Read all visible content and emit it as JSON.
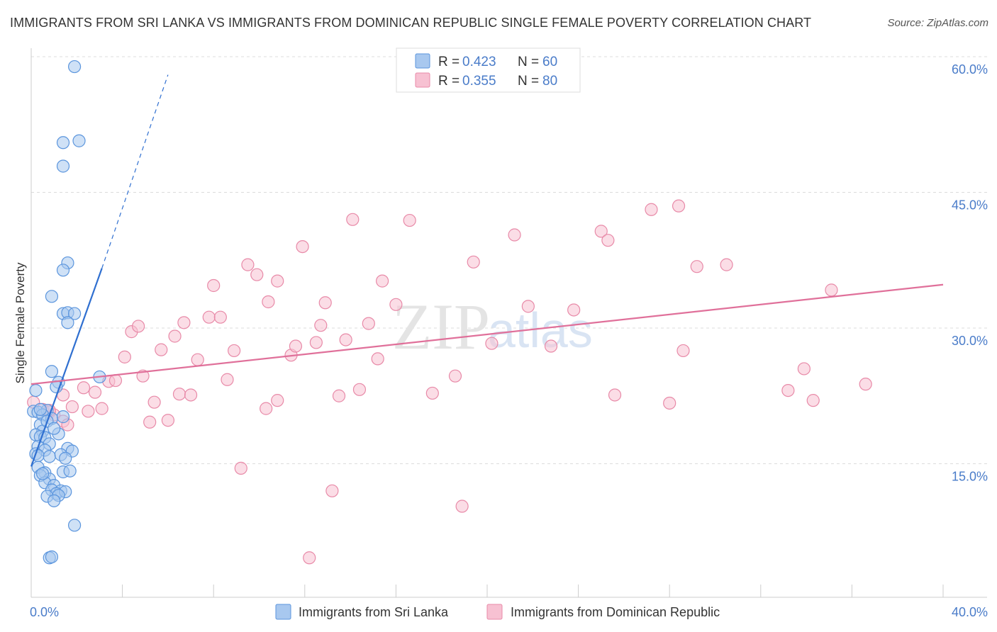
{
  "header": {
    "title": "IMMIGRANTS FROM SRI LANKA VS IMMIGRANTS FROM DOMINICAN REPUBLIC SINGLE FEMALE POVERTY CORRELATION CHART",
    "source": "Source: ZipAtlas.com"
  },
  "watermark": {
    "zip": "ZIP",
    "atlas": "atlas"
  },
  "legend": {
    "r_label": "R = ",
    "n_label": "N = ",
    "rows": [
      {
        "r": "0.423",
        "n": "60"
      },
      {
        "r": "0.355",
        "n": "80"
      }
    ]
  },
  "colors": {
    "blue_fill": "#a8c8ef",
    "blue_stroke": "#5b95dd",
    "blue_line": "#2f6fd0",
    "pink_fill": "#f7c1d2",
    "pink_stroke": "#e88aa8",
    "pink_line": "#e0709a",
    "text_blue": "#4a7cc9"
  },
  "chart_data": {
    "type": "scatter",
    "title": "IMMIGRANTS FROM SRI LANKA VS IMMIGRANTS FROM DOMINICAN REPUBLIC SINGLE FEMALE POVERTY CORRELATION CHART",
    "xlabel": "",
    "ylabel": "Single Female Poverty",
    "xlim": [
      0,
      40
    ],
    "ylim": [
      0,
      60
    ],
    "x_tick_labels": [
      "0.0%",
      "40.0%"
    ],
    "y_tick_labels": [
      "15.0%",
      "30.0%",
      "45.0%",
      "60.0%"
    ],
    "y_ticks": [
      15,
      30,
      45,
      60
    ],
    "x_minor_ticks": [
      0,
      4,
      8,
      12,
      16,
      20,
      24,
      28,
      32,
      36,
      40
    ],
    "grid": true,
    "legend_position": "top-center",
    "series": [
      {
        "name": "Immigrants from Sri Lanka",
        "color": "blue",
        "r": 0.423,
        "n": 60,
        "trend": {
          "x0": 0,
          "y0": 14.7,
          "x1": 3.1,
          "y1": 36.6,
          "dash_to_x": 6.0,
          "dash_to_y": 58.0
        },
        "points": [
          [
            1.9,
            58.9
          ],
          [
            1.4,
            50.5
          ],
          [
            2.1,
            50.7
          ],
          [
            1.4,
            47.9
          ],
          [
            1.6,
            37.2
          ],
          [
            1.4,
            36.4
          ],
          [
            0.9,
            33.5
          ],
          [
            1.4,
            31.6
          ],
          [
            1.6,
            31.7
          ],
          [
            1.9,
            31.6
          ],
          [
            1.6,
            30.6
          ],
          [
            0.9,
            25.2
          ],
          [
            1.2,
            24.0
          ],
          [
            1.1,
            23.5
          ],
          [
            3.0,
            24.6
          ],
          [
            0.2,
            23.1
          ],
          [
            0.1,
            20.8
          ],
          [
            0.3,
            20.7
          ],
          [
            0.7,
            20.9
          ],
          [
            0.5,
            20.4
          ],
          [
            0.9,
            20.0
          ],
          [
            1.4,
            20.2
          ],
          [
            0.4,
            19.3
          ],
          [
            0.5,
            18.6
          ],
          [
            0.2,
            18.2
          ],
          [
            0.4,
            18.0
          ],
          [
            0.6,
            17.9
          ],
          [
            1.2,
            18.3
          ],
          [
            0.8,
            17.2
          ],
          [
            0.3,
            16.9
          ],
          [
            0.6,
            16.5
          ],
          [
            1.6,
            16.7
          ],
          [
            1.8,
            16.4
          ],
          [
            0.2,
            16.1
          ],
          [
            0.3,
            15.9
          ],
          [
            0.8,
            15.8
          ],
          [
            1.3,
            16.0
          ],
          [
            1.5,
            15.6
          ],
          [
            0.3,
            14.6
          ],
          [
            0.6,
            14.0
          ],
          [
            1.4,
            14.1
          ],
          [
            1.7,
            14.2
          ],
          [
            0.4,
            13.7
          ],
          [
            0.8,
            13.3
          ],
          [
            0.6,
            12.9
          ],
          [
            1.0,
            12.6
          ],
          [
            0.9,
            12.1
          ],
          [
            1.3,
            12.0
          ],
          [
            1.1,
            11.7
          ],
          [
            1.5,
            11.9
          ],
          [
            0.7,
            11.4
          ],
          [
            1.2,
            11.5
          ],
          [
            1.0,
            10.9
          ],
          [
            1.9,
            8.2
          ],
          [
            0.8,
            4.6
          ],
          [
            0.9,
            4.7
          ],
          [
            0.4,
            21.0
          ],
          [
            0.7,
            19.7
          ],
          [
            1.0,
            18.9
          ],
          [
            0.5,
            13.9
          ]
        ]
      },
      {
        "name": "Immigrants from Dominican Republic",
        "color": "pink",
        "r": 0.355,
        "n": 80,
        "trend": {
          "x0": 0,
          "y0": 23.8,
          "x1": 40,
          "y1": 34.8
        },
        "points": [
          [
            0.1,
            21.8
          ],
          [
            0.5,
            21.0
          ],
          [
            0.8,
            20.7
          ],
          [
            1.0,
            20.4
          ],
          [
            1.4,
            19.7
          ],
          [
            1.6,
            19.3
          ],
          [
            1.8,
            21.3
          ],
          [
            1.4,
            22.6
          ],
          [
            2.3,
            23.4
          ],
          [
            2.8,
            22.9
          ],
          [
            2.5,
            20.8
          ],
          [
            3.1,
            21.1
          ],
          [
            3.4,
            24.1
          ],
          [
            3.7,
            24.2
          ],
          [
            4.1,
            26.8
          ],
          [
            4.4,
            29.6
          ],
          [
            4.7,
            30.2
          ],
          [
            4.9,
            24.7
          ],
          [
            5.2,
            19.6
          ],
          [
            5.4,
            21.8
          ],
          [
            5.7,
            27.6
          ],
          [
            6.0,
            19.8
          ],
          [
            6.3,
            29.1
          ],
          [
            6.5,
            22.7
          ],
          [
            6.7,
            30.6
          ],
          [
            7.0,
            22.6
          ],
          [
            7.3,
            26.5
          ],
          [
            7.8,
            31.2
          ],
          [
            8.3,
            31.2
          ],
          [
            8.0,
            34.7
          ],
          [
            8.9,
            27.5
          ],
          [
            8.6,
            24.3
          ],
          [
            9.2,
            14.5
          ],
          [
            9.5,
            37.0
          ],
          [
            9.9,
            35.9
          ],
          [
            10.3,
            21.1
          ],
          [
            10.4,
            32.9
          ],
          [
            10.8,
            22.0
          ],
          [
            10.8,
            35.2
          ],
          [
            11.4,
            27.0
          ],
          [
            11.6,
            28.0
          ],
          [
            11.9,
            39.0
          ],
          [
            12.2,
            4.6
          ],
          [
            12.5,
            28.4
          ],
          [
            12.7,
            30.3
          ],
          [
            12.9,
            32.8
          ],
          [
            13.2,
            12.0
          ],
          [
            13.5,
            22.5
          ],
          [
            13.8,
            28.7
          ],
          [
            14.1,
            42.0
          ],
          [
            14.4,
            23.2
          ],
          [
            14.8,
            30.5
          ],
          [
            15.2,
            26.6
          ],
          [
            15.4,
            35.2
          ],
          [
            16.0,
            32.6
          ],
          [
            16.6,
            41.9
          ],
          [
            17.6,
            22.8
          ],
          [
            18.6,
            24.7
          ],
          [
            18.9,
            10.3
          ],
          [
            19.4,
            37.3
          ],
          [
            20.2,
            28.3
          ],
          [
            21.2,
            40.3
          ],
          [
            21.8,
            32.4
          ],
          [
            22.8,
            28.0
          ],
          [
            23.8,
            32.0
          ],
          [
            25.0,
            40.7
          ],
          [
            25.3,
            39.7
          ],
          [
            25.6,
            22.6
          ],
          [
            27.2,
            43.1
          ],
          [
            28.0,
            21.7
          ],
          [
            28.6,
            27.5
          ],
          [
            28.4,
            43.5
          ],
          [
            29.2,
            36.8
          ],
          [
            30.5,
            37.0
          ],
          [
            33.2,
            23.1
          ],
          [
            33.9,
            25.5
          ],
          [
            34.3,
            22.0
          ],
          [
            35.1,
            34.2
          ],
          [
            36.6,
            23.8
          ],
          [
            0.8,
            20.9
          ]
        ]
      }
    ]
  }
}
